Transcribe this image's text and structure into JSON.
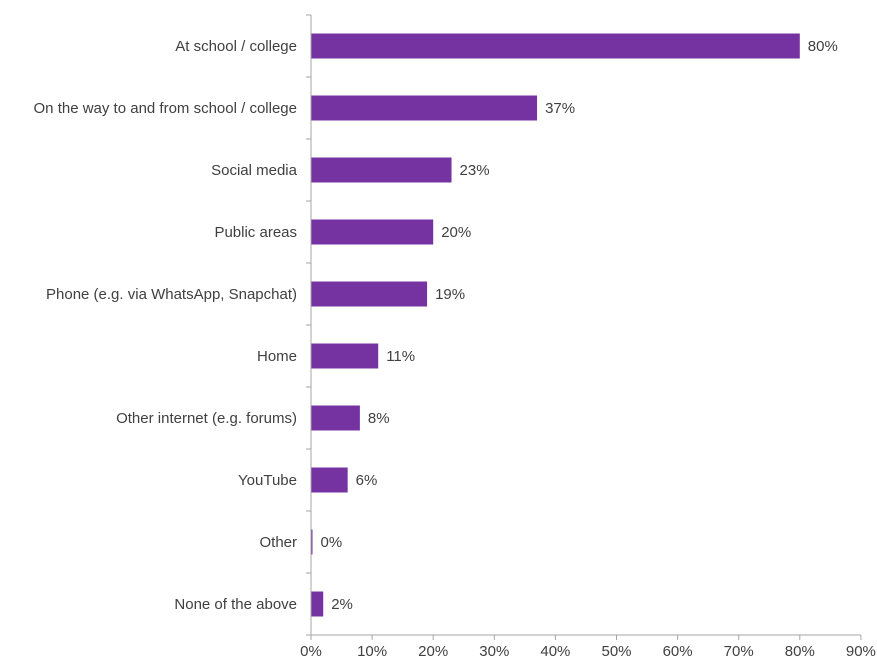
{
  "chart_data": {
    "type": "bar",
    "orientation": "horizontal",
    "categories": [
      "At school / college",
      "On the way to and from school / college",
      "Social media",
      "Public areas",
      "Phone (e.g. via WhatsApp, Snapchat)",
      "Home",
      "Other internet (e.g. forums)",
      "YouTube",
      "Other",
      "None of the above"
    ],
    "values": [
      80,
      37,
      23,
      20,
      19,
      11,
      8,
      6,
      0,
      2
    ],
    "value_labels": [
      "80%",
      "37%",
      "23%",
      "20%",
      "19%",
      "11%",
      "8%",
      "6%",
      "0%",
      "2%"
    ],
    "xlim": [
      0,
      90
    ],
    "xticks": [
      "0%",
      "10%",
      "20%",
      "30%",
      "40%",
      "50%",
      "60%",
      "70%",
      "80%",
      "90%"
    ],
    "bar_color": "#7433a0",
    "grid": false,
    "legend": "none"
  }
}
